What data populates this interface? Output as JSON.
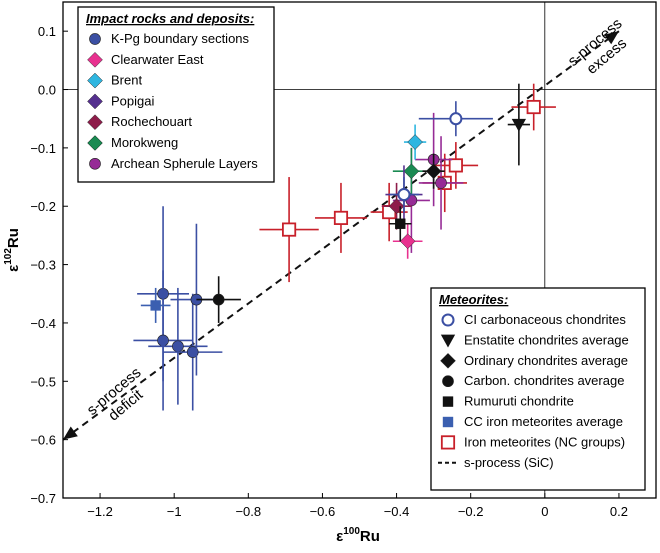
{
  "chart_data": {
    "type": "scatter",
    "xlabel_base": "ε",
    "xlabel_sup": "100",
    "xlabel_suffix": "Ru",
    "ylabel_base": "ε",
    "ylabel_sup": "102",
    "ylabel_suffix": "Ru",
    "xlim": [
      -1.3,
      0.3
    ],
    "ylim": [
      -0.7,
      0.15
    ],
    "x_ticks": [
      {
        "value": -1.2,
        "label": "−1.2"
      },
      {
        "value": -1.0,
        "label": "−1"
      },
      {
        "value": -0.8,
        "label": "−0.8"
      },
      {
        "value": -0.6,
        "label": "−0.6"
      },
      {
        "value": -0.4,
        "label": "−0.4"
      },
      {
        "value": -0.2,
        "label": "−0.2"
      },
      {
        "value": 0,
        "label": "0"
      },
      {
        "value": 0.2,
        "label": "0.2"
      }
    ],
    "y_ticks": [
      {
        "value": 0.1,
        "label": "0.1"
      },
      {
        "value": 0,
        "label": "0.0"
      },
      {
        "value": -0.1,
        "label": "−0.1"
      },
      {
        "value": -0.2,
        "label": "−0.2"
      },
      {
        "value": -0.3,
        "label": "−0.3"
      },
      {
        "value": -0.4,
        "label": "−0.4"
      },
      {
        "value": -0.5,
        "label": "−0.5"
      },
      {
        "value": -0.6,
        "label": "−0.6"
      },
      {
        "value": -0.7,
        "label": "−0.7"
      }
    ],
    "zero_lines": true,
    "sprocess_line": {
      "x": [
        -1.3,
        0.2
      ],
      "y": [
        -0.6,
        0.1
      ]
    },
    "annotations": {
      "excess": [
        "s-process",
        "excess"
      ],
      "deficit": [
        "s-process",
        "deficit"
      ]
    },
    "legend_impact": {
      "title": "Impact rocks and deposits:",
      "placement": "top-left",
      "items": [
        {
          "label": "K-Pg boundary sections",
          "shape": "circle",
          "color": "#3b4fa3"
        },
        {
          "label": "Clearwater East",
          "shape": "diamond",
          "color": "#e8318f"
        },
        {
          "label": "Brent",
          "shape": "diamond",
          "color": "#2fb6e0"
        },
        {
          "label": "Popigai",
          "shape": "diamond",
          "color": "#55308f"
        },
        {
          "label": "Rochechouart",
          "shape": "diamond",
          "color": "#8e1c4a"
        },
        {
          "label": "Morokweng",
          "shape": "diamond",
          "color": "#1a8a52"
        },
        {
          "label": "Archean Spherule Layers",
          "shape": "circle",
          "color": "#962b96"
        }
      ]
    },
    "legend_meteorites": {
      "title": "Meteorites:",
      "placement": "bottom-right",
      "items": [
        {
          "label": "CI carbonaceous chondrites",
          "shape": "open-circle",
          "color": "#3b4fa3"
        },
        {
          "label": "Enstatite chondrites average",
          "shape": "triangle-down",
          "color": "#111111"
        },
        {
          "label": "Ordinary chondrites average",
          "shape": "diamond",
          "color": "#111111"
        },
        {
          "label": "Carbon. chondrites average",
          "shape": "circle",
          "color": "#111111"
        },
        {
          "label": "Rumuruti chondrite",
          "shape": "square",
          "color": "#111111"
        },
        {
          "label": "CC iron meteorites average",
          "shape": "square",
          "color": "#3b5fb0"
        },
        {
          "label": "Iron meteorites (NC groups)",
          "shape": "open-square",
          "color": "#c8202a"
        },
        {
          "label": "s-process (SiC)",
          "shape": "dashed-line",
          "color": "#111111"
        }
      ]
    },
    "points": [
      {
        "series": "Iron meteorites (NC groups)",
        "shape": "open-square",
        "color": "#c8202a",
        "err": "#c8202a",
        "x": -0.69,
        "y": -0.24,
        "xe": 0.08,
        "ye": 0.09
      },
      {
        "series": "Iron meteorites (NC groups)",
        "shape": "open-square",
        "color": "#c8202a",
        "err": "#c8202a",
        "x": -0.55,
        "y": -0.22,
        "xe": 0.07,
        "ye": 0.06
      },
      {
        "series": "Iron meteorites (NC groups)",
        "shape": "open-square",
        "color": "#c8202a",
        "err": "#c8202a",
        "x": -0.42,
        "y": -0.21,
        "xe": 0.05,
        "ye": 0.05
      },
      {
        "series": "Iron meteorites (NC groups)",
        "shape": "open-square",
        "color": "#c8202a",
        "err": "#c8202a",
        "x": -0.27,
        "y": -0.16,
        "xe": 0.06,
        "ye": 0.05
      },
      {
        "series": "Iron meteorites (NC groups)",
        "shape": "open-square",
        "color": "#c8202a",
        "err": "#c8202a",
        "x": -0.24,
        "y": -0.13,
        "xe": 0.06,
        "ye": 0.04
      },
      {
        "series": "Iron meteorites (NC groups)",
        "shape": "open-square",
        "color": "#c8202a",
        "err": "#c8202a",
        "x": -0.03,
        "y": -0.03,
        "xe": 0.06,
        "ye": 0.04
      },
      {
        "series": "K-Pg boundary sections",
        "shape": "circle",
        "color": "#3b4fa3",
        "err": "#3b4fa3",
        "x": -1.03,
        "y": -0.35,
        "xe": 0.07,
        "ye": 0.15
      },
      {
        "series": "K-Pg boundary sections",
        "shape": "circle",
        "color": "#3b4fa3",
        "err": "#3b4fa3",
        "x": -1.03,
        "y": -0.43,
        "xe": 0.08,
        "ye": 0.12
      },
      {
        "series": "K-Pg boundary sections",
        "shape": "circle",
        "color": "#3b4fa3",
        "err": "#3b4fa3",
        "x": -0.99,
        "y": -0.44,
        "xe": 0.08,
        "ye": 0.1
      },
      {
        "series": "K-Pg boundary sections",
        "shape": "circle",
        "color": "#3b4fa3",
        "err": "#3b4fa3",
        "x": -0.95,
        "y": -0.45,
        "xe": 0.08,
        "ye": 0.1
      },
      {
        "series": "K-Pg boundary sections",
        "shape": "circle",
        "color": "#3b4fa3",
        "err": "#3b4fa3",
        "x": -0.94,
        "y": -0.36,
        "xe": 0.07,
        "ye": 0.13
      },
      {
        "series": "CC iron meteorites average",
        "shape": "square",
        "color": "#3b5fb0",
        "err": "#3b5fb0",
        "x": -1.05,
        "y": -0.37,
        "xe": 0.04,
        "ye": 0.03
      },
      {
        "series": "Carbon. chondrites average",
        "shape": "circle",
        "color": "#111111",
        "err": "#111111",
        "x": -0.88,
        "y": -0.36,
        "xe": 0.06,
        "ye": 0.04
      },
      {
        "series": "Archean Spherule Layers",
        "shape": "circle",
        "color": "#962b96",
        "err": "#962b96",
        "x": -0.3,
        "y": -0.12,
        "xe": 0.05,
        "ye": 0.08
      },
      {
        "series": "Archean Spherule Layers",
        "shape": "circle",
        "color": "#962b96",
        "err": "#962b96",
        "x": -0.28,
        "y": -0.16,
        "xe": 0.06,
        "ye": 0.08
      },
      {
        "series": "Archean Spherule Layers",
        "shape": "circle",
        "color": "#962b96",
        "err": "#962b96",
        "x": -0.36,
        "y": -0.19,
        "xe": 0.05,
        "ye": 0.09
      },
      {
        "series": "Brent",
        "shape": "diamond",
        "color": "#2fb6e0",
        "err": "#2fb6e0",
        "x": -0.35,
        "y": -0.09,
        "xe": 0.03,
        "ye": 0.03
      },
      {
        "series": "Morokweng",
        "shape": "diamond",
        "color": "#1a8a52",
        "err": "#1a8a52",
        "x": -0.36,
        "y": -0.14,
        "xe": 0.05,
        "ye": 0.04
      },
      {
        "series": "Popigai",
        "shape": "diamond",
        "color": "#55308f",
        "err": "#55308f",
        "x": -0.38,
        "y": -0.18,
        "xe": 0.05,
        "ye": 0.05
      },
      {
        "series": "Rochechouart",
        "shape": "diamond",
        "color": "#8e1c4a",
        "err": "#8e1c4a",
        "x": -0.4,
        "y": -0.2,
        "xe": 0.04,
        "ye": 0.04
      },
      {
        "series": "Clearwater East",
        "shape": "diamond",
        "color": "#e8318f",
        "err": "#e8318f",
        "x": -0.37,
        "y": -0.26,
        "xe": 0.04,
        "ye": 0.03
      },
      {
        "series": "Rumuruti chondrite",
        "shape": "square",
        "color": "#111111",
        "err": "#111111",
        "x": -0.39,
        "y": -0.23,
        "xe": 0.03,
        "ye": 0.03
      },
      {
        "series": "CI carbonaceous chondrites",
        "shape": "open-circle",
        "color": "#3b4fa3",
        "err": "#3b4fa3",
        "x": -0.38,
        "y": -0.18,
        "xe": 0.04,
        "ye": 0.03
      },
      {
        "series": "Ordinary chondrites average",
        "shape": "diamond",
        "color": "#111111",
        "err": "#111111",
        "x": -0.3,
        "y": -0.14,
        "xe": 0.03,
        "ye": 0.03
      },
      {
        "series": "CI carbonaceous chondrites",
        "shape": "open-circle",
        "color": "#3b4fa3",
        "err": "#3b4fa3",
        "x": -0.24,
        "y": -0.05,
        "xe": 0.1,
        "ye": 0.03
      },
      {
        "series": "Enstatite chondrites average",
        "shape": "triangle-down",
        "color": "#111111",
        "err": "#111111",
        "x": -0.07,
        "y": -0.06,
        "xe": 0.03,
        "ye": 0.07
      }
    ]
  }
}
